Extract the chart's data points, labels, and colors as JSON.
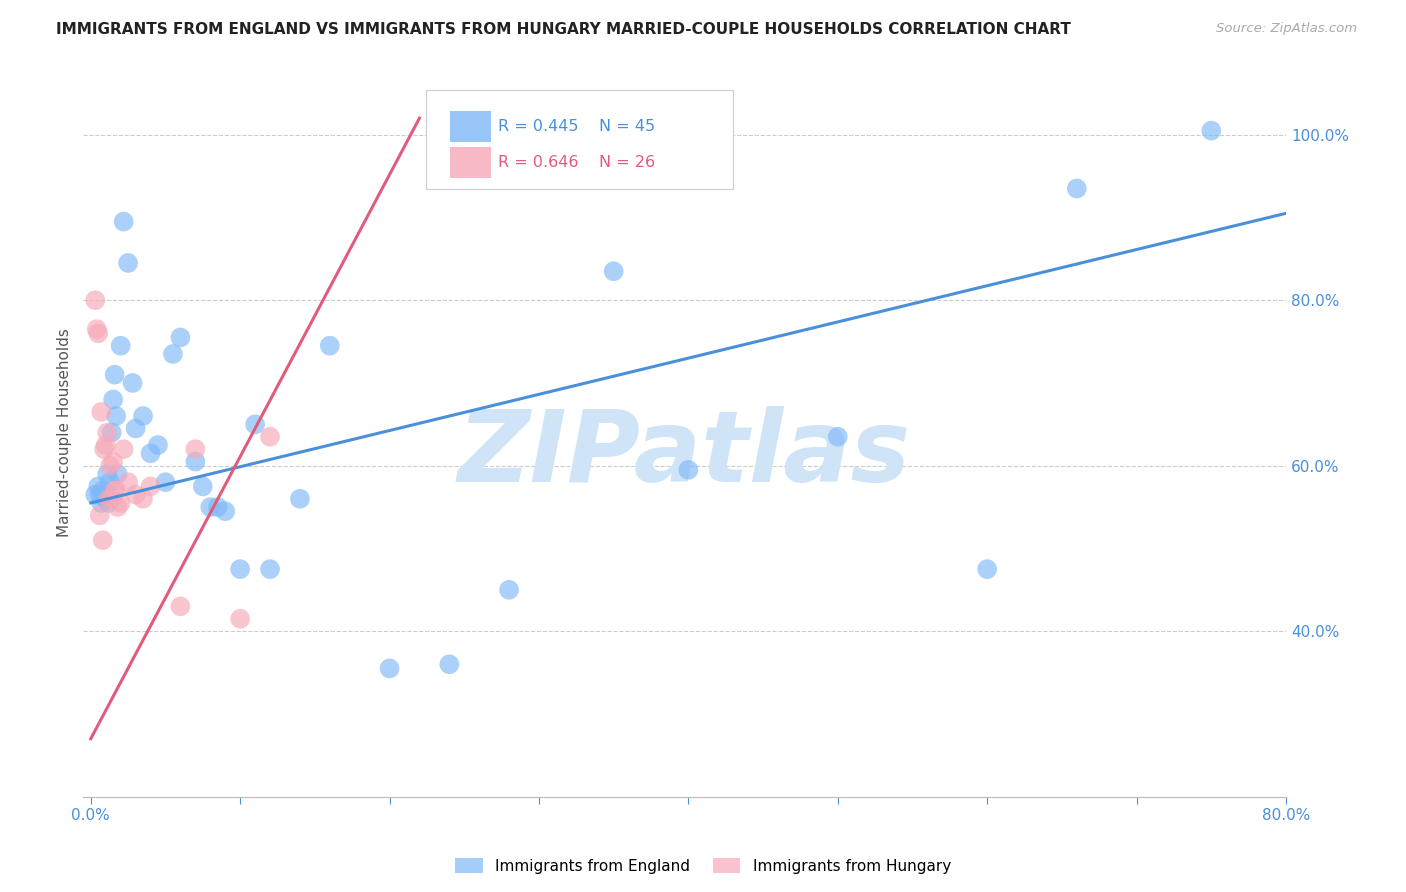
{
  "title": "IMMIGRANTS FROM ENGLAND VS IMMIGRANTS FROM HUNGARY MARRIED-COUPLE HOUSEHOLDS CORRELATION CHART",
  "source": "Source: ZipAtlas.com",
  "ylabel": "Married-couple Households",
  "xlim": [
    -0.005,
    0.8
  ],
  "ylim": [
    0.2,
    1.08
  ],
  "yticks": [
    0.4,
    0.6,
    0.8,
    1.0
  ],
  "ytick_labels": [
    "40.0%",
    "60.0%",
    "80.0%",
    "100.0%"
  ],
  "xticks": [
    0.0,
    0.1,
    0.2,
    0.3,
    0.4,
    0.5,
    0.6,
    0.7,
    0.8
  ],
  "xtick_labels": [
    "0.0%",
    "",
    "",
    "",
    "",
    "",
    "",
    "",
    "80.0%"
  ],
  "england_R": 0.445,
  "england_N": 45,
  "hungary_R": 0.646,
  "hungary_N": 26,
  "england_color": "#7eb8f7",
  "hungary_color": "#f7a8b8",
  "england_line_color": "#4a90d9",
  "hungary_line_color": "#e05c7a",
  "watermark": "ZIPatlas",
  "watermark_color": "#d0e4f7",
  "england_line_x0": 0.0,
  "england_line_y0": 0.555,
  "england_line_x1": 0.8,
  "england_line_y1": 0.905,
  "hungary_line_x0": 0.0,
  "hungary_line_y0": 0.27,
  "hungary_line_x1": 0.22,
  "hungary_line_y1": 1.02,
  "england_x": [
    0.003,
    0.005,
    0.006,
    0.007,
    0.008,
    0.009,
    0.01,
    0.011,
    0.012,
    0.013,
    0.014,
    0.015,
    0.016,
    0.017,
    0.018,
    0.02,
    0.022,
    0.025,
    0.028,
    0.03,
    0.035,
    0.04,
    0.045,
    0.05,
    0.055,
    0.06,
    0.07,
    0.075,
    0.08,
    0.085,
    0.09,
    0.1,
    0.11,
    0.12,
    0.14,
    0.16,
    0.2,
    0.24,
    0.28,
    0.35,
    0.4,
    0.5,
    0.6,
    0.66,
    0.75
  ],
  "england_y": [
    0.565,
    0.575,
    0.565,
    0.555,
    0.57,
    0.565,
    0.56,
    0.59,
    0.555,
    0.58,
    0.64,
    0.68,
    0.71,
    0.66,
    0.59,
    0.745,
    0.895,
    0.845,
    0.7,
    0.645,
    0.66,
    0.615,
    0.625,
    0.58,
    0.735,
    0.755,
    0.605,
    0.575,
    0.55,
    0.55,
    0.545,
    0.475,
    0.65,
    0.475,
    0.56,
    0.745,
    0.355,
    0.36,
    0.45,
    0.835,
    0.595,
    0.635,
    0.475,
    0.935,
    1.005
  ],
  "hungary_x": [
    0.003,
    0.004,
    0.005,
    0.006,
    0.007,
    0.008,
    0.009,
    0.01,
    0.011,
    0.012,
    0.013,
    0.014,
    0.015,
    0.016,
    0.017,
    0.018,
    0.02,
    0.022,
    0.025,
    0.03,
    0.035,
    0.04,
    0.06,
    0.07,
    0.1,
    0.12
  ],
  "hungary_y": [
    0.8,
    0.765,
    0.76,
    0.54,
    0.665,
    0.51,
    0.62,
    0.625,
    0.64,
    0.56,
    0.6,
    0.56,
    0.605,
    0.57,
    0.57,
    0.55,
    0.555,
    0.62,
    0.58,
    0.565,
    0.56,
    0.575,
    0.43,
    0.62,
    0.415,
    0.635
  ]
}
